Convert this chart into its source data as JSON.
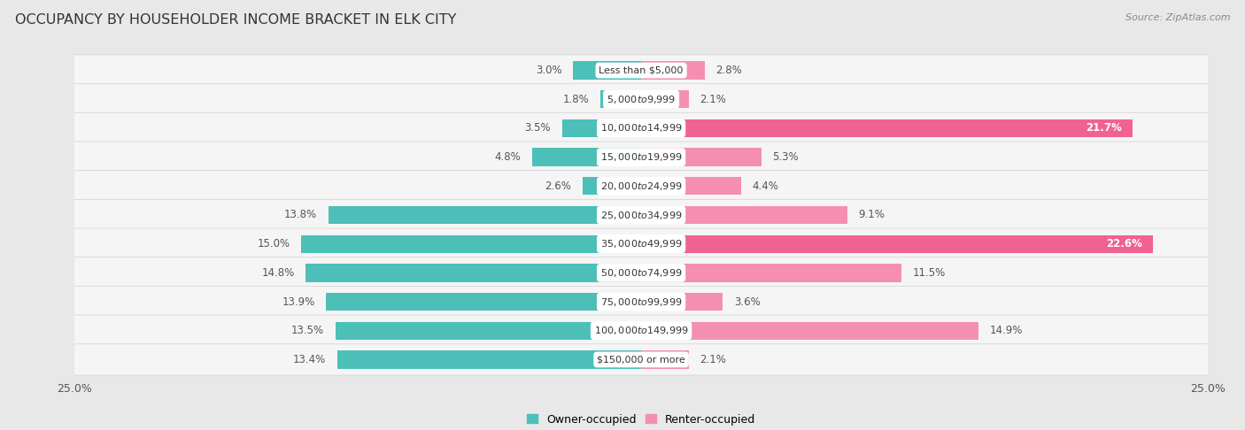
{
  "title": "OCCUPANCY BY HOUSEHOLDER INCOME BRACKET IN ELK CITY",
  "source": "Source: ZipAtlas.com",
  "categories": [
    "Less than $5,000",
    "$5,000 to $9,999",
    "$10,000 to $14,999",
    "$15,000 to $19,999",
    "$20,000 to $24,999",
    "$25,000 to $34,999",
    "$35,000 to $49,999",
    "$50,000 to $74,999",
    "$75,000 to $99,999",
    "$100,000 to $149,999",
    "$150,000 or more"
  ],
  "owner_values": [
    3.0,
    1.8,
    3.5,
    4.8,
    2.6,
    13.8,
    15.0,
    14.8,
    13.9,
    13.5,
    13.4
  ],
  "renter_values": [
    2.8,
    2.1,
    21.7,
    5.3,
    4.4,
    9.1,
    22.6,
    11.5,
    3.6,
    14.9,
    2.1
  ],
  "owner_color": "#4CBFB8",
  "renter_color": "#F48FB1",
  "renter_color_dark": "#F06292",
  "background_color": "#e8e8e8",
  "bar_background": "#f5f5f5",
  "axis_limit": 25.0,
  "title_fontsize": 11.5,
  "label_fontsize": 8.5,
  "category_fontsize": 8.0,
  "legend_fontsize": 9,
  "source_fontsize": 8
}
